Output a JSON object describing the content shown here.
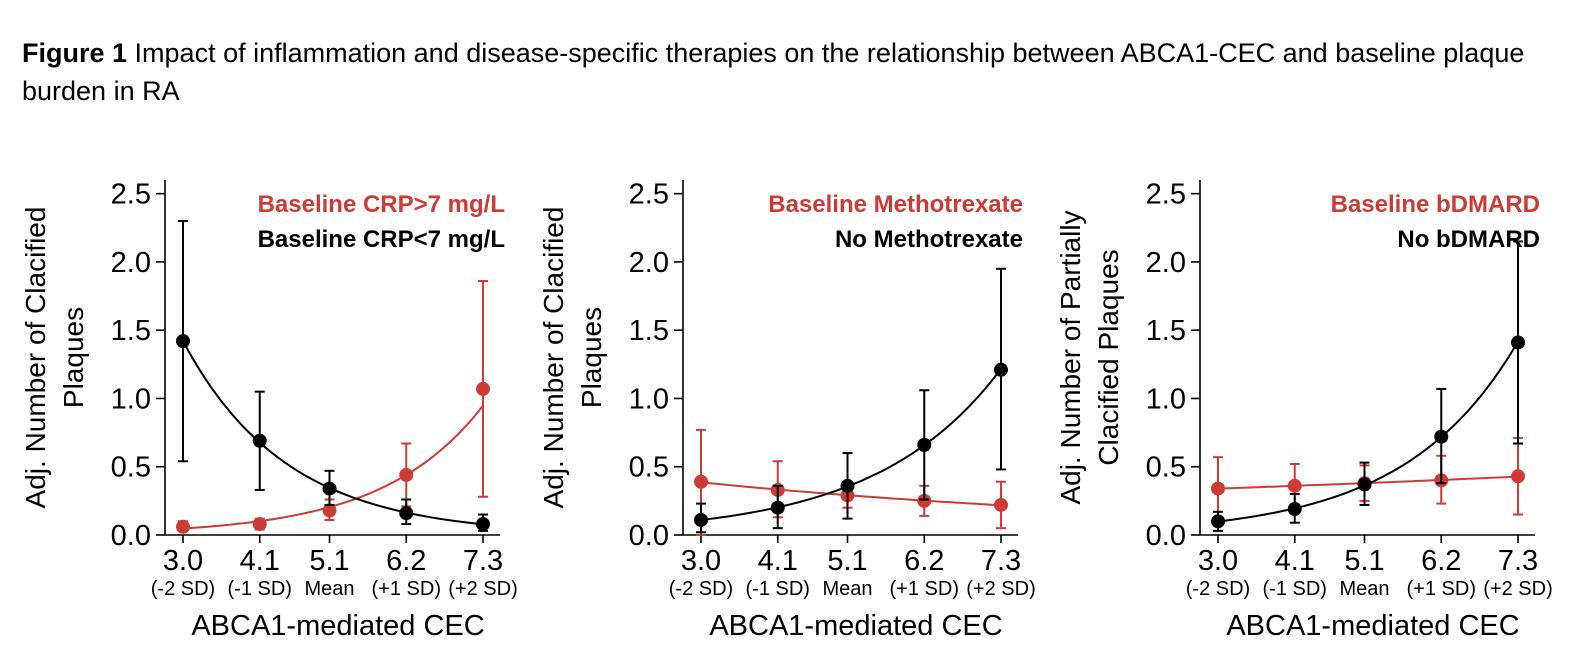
{
  "figure": {
    "caption_label": "Figure 1",
    "caption_text": "Impact of inflammation and disease-specific therapies on the relationship between ABCA1-CEC and baseline plaque burden in RA"
  },
  "colors": {
    "red": "#cc3b36",
    "black": "#000000"
  },
  "chart_data": [
    {
      "type": "line",
      "xlabel": "ABCA1-mediated CEC",
      "ylabel": [
        "Adj. Number of Clacified",
        "Plaques"
      ],
      "categories": [
        "3.0",
        "4.1",
        "5.1",
        "6.2",
        "7.3"
      ],
      "category_sublabels": [
        "(-2 SD)",
        "(-1 SD)",
        "Mean",
        "(+1 SD)",
        "(+2 SD)"
      ],
      "ylim": [
        0,
        2.6
      ],
      "yticks": [
        "0.0",
        "0.5",
        "1.0",
        "1.5",
        "2.0",
        "2.5"
      ],
      "legend_position": "top-right",
      "series": [
        {
          "name": "Baseline CRP>7 mg/L",
          "color": "#cc3b36",
          "x": [
            3.0,
            4.1,
            5.1,
            6.2,
            7.3
          ],
          "y": [
            0.06,
            0.08,
            0.18,
            0.44,
            1.07
          ],
          "err_low": [
            0.03,
            0.04,
            0.11,
            0.21,
            0.28
          ],
          "err_high": [
            0.1,
            0.12,
            0.26,
            0.67,
            1.86
          ]
        },
        {
          "name": "Baseline CRP<7 mg/L",
          "color": "#000000",
          "x": [
            3.0,
            4.1,
            5.1,
            6.2,
            7.3
          ],
          "y": [
            1.42,
            0.69,
            0.34,
            0.16,
            0.08
          ],
          "err_low": [
            0.54,
            0.33,
            0.22,
            0.08,
            0.03
          ],
          "err_high": [
            2.3,
            1.05,
            0.47,
            0.26,
            0.15
          ]
        }
      ]
    },
    {
      "type": "line",
      "xlabel": "ABCA1-mediated CEC",
      "ylabel": [
        "Adj. Number of Clacified",
        "Plaques"
      ],
      "categories": [
        "3.0",
        "4.1",
        "5.1",
        "6.2",
        "7.3"
      ],
      "category_sublabels": [
        "(-2 SD)",
        "(-1 SD)",
        "Mean",
        "(+1 SD)",
        "(+2 SD)"
      ],
      "ylim": [
        0,
        2.6
      ],
      "yticks": [
        "0.0",
        "0.5",
        "1.0",
        "1.5",
        "2.0",
        "2.5"
      ],
      "legend_position": "top-right",
      "series": [
        {
          "name": "Baseline Methotrexate",
          "color": "#cc3b36",
          "x": [
            3.0,
            4.1,
            5.1,
            6.2,
            7.3
          ],
          "y": [
            0.39,
            0.33,
            0.29,
            0.25,
            0.22
          ],
          "err_low": [
            0.0,
            0.13,
            0.2,
            0.14,
            0.05
          ],
          "err_high": [
            0.77,
            0.54,
            0.38,
            0.36,
            0.39
          ]
        },
        {
          "name": "No Methotrexate",
          "color": "#000000",
          "x": [
            3.0,
            4.1,
            5.1,
            6.2,
            7.3
          ],
          "y": [
            0.11,
            0.2,
            0.36,
            0.66,
            1.21
          ],
          "err_low": [
            0.02,
            0.05,
            0.12,
            0.26,
            0.48
          ],
          "err_high": [
            0.23,
            0.36,
            0.6,
            1.06,
            1.95
          ]
        }
      ]
    },
    {
      "type": "line",
      "xlabel": "ABCA1-mediated CEC",
      "ylabel": [
        "Adj. Number of Partially",
        "Clacified Plaques"
      ],
      "categories": [
        "3.0",
        "4.1",
        "5.1",
        "6.2",
        "7.3"
      ],
      "category_sublabels": [
        "(-2 SD)",
        "(-1 SD)",
        "Mean",
        "(+1 SD)",
        "(+2 SD)"
      ],
      "ylim": [
        0,
        2.6
      ],
      "yticks": [
        "0.0",
        "0.5",
        "1.0",
        "1.5",
        "2.0",
        "2.5"
      ],
      "legend_position": "top-right",
      "series": [
        {
          "name": "Baseline bDMARD",
          "color": "#cc3b36",
          "x": [
            3.0,
            4.1,
            5.1,
            6.2,
            7.3
          ],
          "y": [
            0.34,
            0.36,
            0.38,
            0.4,
            0.43
          ],
          "err_low": [
            0.11,
            0.2,
            0.25,
            0.23,
            0.15
          ],
          "err_high": [
            0.57,
            0.52,
            0.51,
            0.58,
            0.71
          ]
        },
        {
          "name": "No bDMARD",
          "color": "#000000",
          "x": [
            3.0,
            4.1,
            5.1,
            6.2,
            7.3
          ],
          "y": [
            0.1,
            0.19,
            0.37,
            0.72,
            1.41
          ],
          "err_low": [
            0.03,
            0.09,
            0.22,
            0.38,
            0.67
          ],
          "err_high": [
            0.17,
            0.3,
            0.53,
            1.07,
            2.15
          ]
        }
      ]
    }
  ]
}
